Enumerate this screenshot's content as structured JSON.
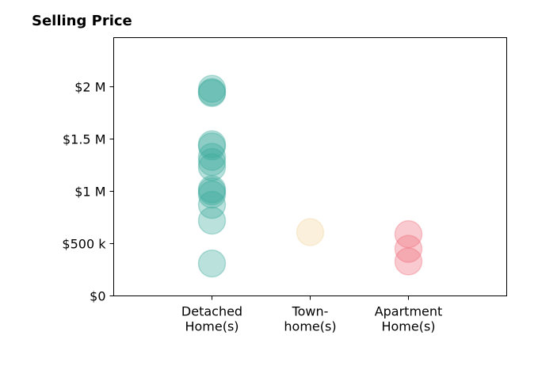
{
  "chart_data": {
    "type": "scatter",
    "title": "Selling Price",
    "xlabel": "",
    "ylabel": "",
    "categories": [
      [
        "Detached",
        "Home(s)"
      ],
      [
        "Town-",
        "home(s)"
      ],
      [
        "Apartment",
        "Home(s)"
      ]
    ],
    "yticks": [
      {
        "value": 0,
        "label": "$0"
      },
      {
        "value": 500000,
        "label": "$500 k"
      },
      {
        "value": 1000000,
        "label": "$1 M"
      },
      {
        "value": 1500000,
        "label": "$1.5 M"
      },
      {
        "value": 2000000,
        "label": "$2 M"
      }
    ],
    "ylim": [
      0,
      2470000
    ],
    "xlim": [
      0,
      4
    ],
    "grid": false,
    "series": [
      {
        "category_index": 0,
        "color": "#3aaa9a",
        "values": [
          1980000,
          1950000,
          1940000,
          1450000,
          1430000,
          1330000,
          1280000,
          1230000,
          1020000,
          1000000,
          970000,
          870000,
          720000,
          310000
        ]
      },
      {
        "category_index": 1,
        "color": "#f2d59b",
        "values": [
          610000
        ]
      },
      {
        "category_index": 2,
        "color": "#ee6b79",
        "values": [
          590000,
          450000,
          330000
        ]
      }
    ]
  }
}
